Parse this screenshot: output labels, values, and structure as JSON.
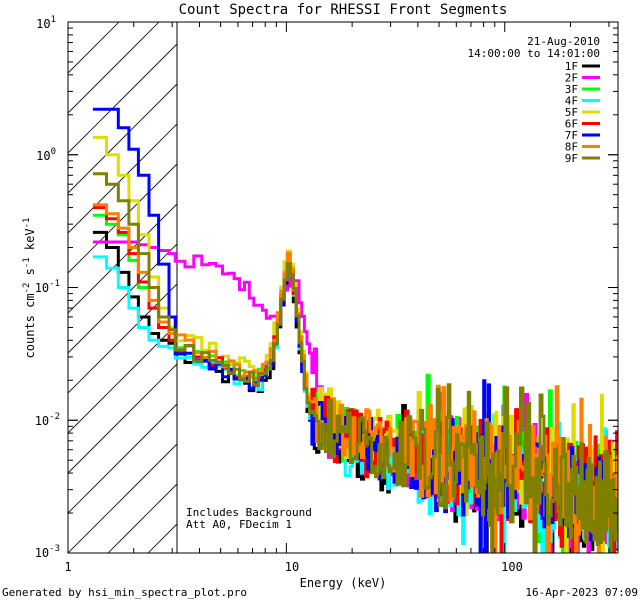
{
  "chart_data": {
    "type": "line",
    "title": "Count Spectra for RHESSI Front Segments",
    "xlabel": "Energy (keV)",
    "ylabel_parts": {
      "base": "counts cm",
      "exp1": "-2",
      "mid": " s",
      "exp2": "-1",
      "unit": " keV",
      "exp3": "-1"
    },
    "xscale": "log",
    "yscale": "log",
    "xlim": [
      1,
      330
    ],
    "ylim": [
      0.001,
      10
    ],
    "x_ticks": [
      {
        "value": 1,
        "label": "1"
      },
      {
        "value": 10,
        "label": "10"
      },
      {
        "value": 100,
        "label": "100"
      }
    ],
    "y_ticks": [
      {
        "value": 10,
        "base": "10",
        "exp": "1"
      },
      {
        "value": 1,
        "base": "10",
        "exp": "0"
      },
      {
        "value": 0.1,
        "base": "10",
        "exp": "-1"
      },
      {
        "value": 0.01,
        "base": "10",
        "exp": "-2"
      },
      {
        "value": 0.001,
        "base": "10",
        "exp": "-3"
      }
    ],
    "attenuator_shade_range_keV": [
      1,
      3
    ],
    "date": "21-Aug-2010",
    "time_range": "14:00:00 to 14:01:00",
    "annotations": [
      "Includes Background",
      "Att A0, FDecim 1"
    ],
    "footer_left": "Generated by hsi_min_spectra_plot.pro",
    "footer_right": "16-Apr-2023 07:09",
    "series": [
      {
        "name": "1F",
        "color": "#000000",
        "scale": 0.85,
        "lowE": [
          0.26,
          0.2,
          0.13,
          0.085,
          0.06,
          0.045,
          0.04,
          0.038
        ]
      },
      {
        "name": "2F",
        "color": "#ff00ff",
        "scale": 1.0,
        "lowE": [
          0.22,
          0.22,
          0.22,
          0.22,
          0.21,
          0.2,
          0.19,
          0.18
        ]
      },
      {
        "name": "3F",
        "color": "#00ff00",
        "scale": 1.05,
        "lowE": [
          0.35,
          0.3,
          0.25,
          0.16,
          0.1,
          0.07,
          0.05,
          0.045
        ]
      },
      {
        "name": "4F",
        "color": "#00ffff",
        "scale": 0.9,
        "lowE": [
          0.17,
          0.14,
          0.1,
          0.07,
          0.05,
          0.04,
          0.036,
          0.035
        ]
      },
      {
        "name": "5F",
        "color": "#dddd00",
        "scale": 1.2,
        "lowE": [
          1.35,
          1.0,
          0.7,
          0.45,
          0.25,
          0.12,
          0.07,
          0.05
        ]
      },
      {
        "name": "6F",
        "color": "#ff0000",
        "scale": 1.0,
        "lowE": [
          0.4,
          0.33,
          0.26,
          0.18,
          0.11,
          0.07,
          0.05,
          0.04
        ]
      },
      {
        "name": "7F",
        "color": "#0000ff",
        "scale": 0.95,
        "lowE": [
          2.2,
          2.2,
          1.6,
          1.1,
          0.7,
          0.35,
          0.15,
          0.06
        ]
      },
      {
        "name": "8F",
        "color": "#ff8000",
        "scale": 1.1,
        "lowE": [
          0.42,
          0.36,
          0.28,
          0.2,
          0.13,
          0.08,
          0.055,
          0.045
        ]
      },
      {
        "name": "9F",
        "color": "#7f7f00",
        "scale": 1.0,
        "lowE": [
          0.72,
          0.6,
          0.45,
          0.3,
          0.18,
          0.1,
          0.06,
          0.048
        ]
      }
    ],
    "common_shape": {
      "energies_keV": [
        3.2,
        3.6,
        4.0,
        4.5,
        5.0,
        5.5,
        6.0,
        6.5,
        7.0,
        7.5,
        8.0,
        8.5,
        9.0,
        9.5,
        10.0,
        10.5,
        11.0,
        11.5,
        12.0,
        12.5,
        13.0,
        14.0,
        15.0,
        16.0,
        18.0,
        20.0,
        23.0,
        26.0,
        30.0,
        35.0,
        40.0,
        50.0,
        60.0,
        80.0,
        100.0,
        150.0,
        200.0,
        300.0
      ],
      "counts": [
        0.036,
        0.032,
        0.03,
        0.028,
        0.025,
        0.024,
        0.022,
        0.021,
        0.02,
        0.021,
        0.025,
        0.032,
        0.05,
        0.09,
        0.16,
        0.13,
        0.07,
        0.035,
        0.02,
        0.013,
        0.011,
        0.0095,
        0.009,
        0.008,
        0.0075,
        0.007,
        0.0065,
        0.006,
        0.0058,
        0.0055,
        0.0052,
        0.005,
        0.0047,
        0.0045,
        0.004,
        0.0035,
        0.003,
        0.0025
      ]
    },
    "magenta_midband": {
      "energies_keV": [
        3.5,
        4.0,
        5.0,
        6.0,
        7.0,
        8.0,
        9.0,
        10.0,
        11.0,
        12.0,
        13.0,
        14.0,
        15.0
      ],
      "counts": [
        0.16,
        0.15,
        0.13,
        0.11,
        0.085,
        0.065,
        0.06,
        0.11,
        0.12,
        0.05,
        0.03,
        0.012,
        0.009
      ]
    }
  }
}
